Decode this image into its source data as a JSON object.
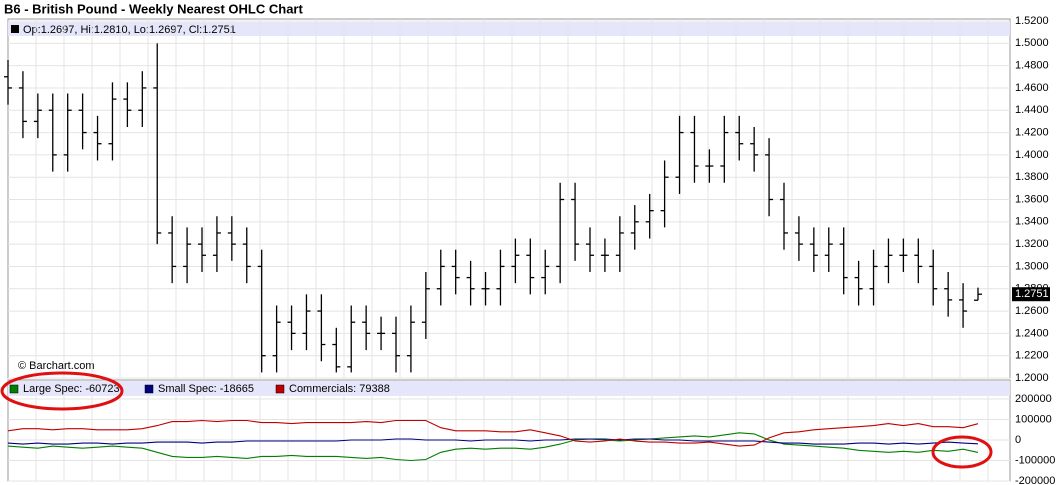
{
  "chart_data": [
    {
      "type": "ohlc",
      "title": "B6 - British Pound - Weekly Nearest OHLC Chart",
      "info": "Op:1.2697, Hi:1.2810, Lo:1.2697, Cl:1.2751",
      "source": "© Barchart.com",
      "color": "#000000",
      "open": [
        1.47,
        1.46,
        1.43,
        1.44,
        1.4,
        1.44,
        1.42,
        1.41,
        1.45,
        1.44,
        1.46,
        1.33,
        1.3,
        1.32,
        1.31,
        1.33,
        1.32,
        1.3,
        1.22,
        1.25,
        1.24,
        1.26,
        1.23,
        1.21,
        1.25,
        1.24,
        1.24,
        1.22,
        1.25,
        1.28,
        1.3,
        1.29,
        1.28,
        1.28,
        1.3,
        1.31,
        1.29,
        1.3,
        1.36,
        1.32,
        1.31,
        1.31,
        1.33,
        1.34,
        1.35,
        1.38,
        1.42,
        1.39,
        1.39,
        1.42,
        1.41,
        1.4,
        1.36,
        1.33,
        1.32,
        1.31,
        1.32,
        1.29,
        1.28,
        1.3,
        1.31,
        1.31,
        1.3,
        1.28,
        1.27,
        1.2697
      ],
      "high": [
        1.485,
        1.475,
        1.455,
        1.455,
        1.455,
        1.455,
        1.435,
        1.465,
        1.465,
        1.475,
        1.5,
        1.345,
        1.335,
        1.335,
        1.345,
        1.345,
        1.335,
        1.315,
        1.265,
        1.265,
        1.275,
        1.275,
        1.245,
        1.265,
        1.265,
        1.255,
        1.255,
        1.265,
        1.295,
        1.315,
        1.315,
        1.305,
        1.295,
        1.315,
        1.325,
        1.325,
        1.315,
        1.375,
        1.375,
        1.335,
        1.325,
        1.345,
        1.355,
        1.365,
        1.395,
        1.435,
        1.435,
        1.405,
        1.435,
        1.435,
        1.425,
        1.415,
        1.375,
        1.345,
        1.335,
        1.335,
        1.335,
        1.305,
        1.315,
        1.325,
        1.325,
        1.325,
        1.315,
        1.295,
        1.285,
        1.281
      ],
      "low": [
        1.445,
        1.415,
        1.415,
        1.385,
        1.385,
        1.405,
        1.395,
        1.395,
        1.425,
        1.425,
        1.32,
        1.285,
        1.285,
        1.295,
        1.295,
        1.305,
        1.285,
        1.205,
        1.205,
        1.225,
        1.225,
        1.215,
        1.205,
        1.205,
        1.225,
        1.225,
        1.205,
        1.205,
        1.235,
        1.265,
        1.275,
        1.265,
        1.265,
        1.265,
        1.285,
        1.275,
        1.275,
        1.285,
        1.305,
        1.295,
        1.295,
        1.295,
        1.315,
        1.325,
        1.335,
        1.365,
        1.375,
        1.375,
        1.375,
        1.395,
        1.385,
        1.345,
        1.315,
        1.305,
        1.295,
        1.295,
        1.275,
        1.265,
        1.265,
        1.285,
        1.295,
        1.285,
        1.265,
        1.255,
        1.245,
        1.2697
      ],
      "close": [
        1.46,
        1.43,
        1.44,
        1.4,
        1.44,
        1.42,
        1.41,
        1.45,
        1.44,
        1.46,
        1.33,
        1.3,
        1.32,
        1.31,
        1.33,
        1.32,
        1.3,
        1.22,
        1.25,
        1.24,
        1.26,
        1.23,
        1.21,
        1.25,
        1.24,
        1.24,
        1.22,
        1.25,
        1.28,
        1.3,
        1.29,
        1.28,
        1.28,
        1.3,
        1.31,
        1.29,
        1.3,
        1.36,
        1.32,
        1.31,
        1.31,
        1.33,
        1.34,
        1.35,
        1.38,
        1.42,
        1.39,
        1.39,
        1.42,
        1.41,
        1.4,
        1.36,
        1.33,
        1.32,
        1.31,
        1.32,
        1.29,
        1.28,
        1.3,
        1.31,
        1.31,
        1.3,
        1.28,
        1.27,
        1.26,
        1.2751
      ],
      "ylim": [
        1.2,
        1.52
      ],
      "yticks": [
        {
          "value": 1.2,
          "label": "1.2000"
        },
        {
          "value": 1.22,
          "label": "1.2200"
        },
        {
          "value": 1.24,
          "label": "1.2400"
        },
        {
          "value": 1.26,
          "label": "1.2600"
        },
        {
          "value": 1.28,
          "label": "1.2800"
        },
        {
          "value": 1.3,
          "label": "1.3000"
        },
        {
          "value": 1.32,
          "label": "1.3200"
        },
        {
          "value": 1.34,
          "label": "1.3400"
        },
        {
          "value": 1.36,
          "label": "1.3600"
        },
        {
          "value": 1.38,
          "label": "1.3800"
        },
        {
          "value": 1.4,
          "label": "1.4000"
        },
        {
          "value": 1.42,
          "label": "1.4200"
        },
        {
          "value": 1.44,
          "label": "1.4400"
        },
        {
          "value": 1.46,
          "label": "1.4600"
        },
        {
          "value": 1.48,
          "label": "1.4800"
        },
        {
          "value": 1.5,
          "label": "1.5000"
        },
        {
          "value": 1.52,
          "label": "1.5200"
        }
      ],
      "grid": true
    },
    {
      "type": "line",
      "series": [
        {
          "name": "Large Spec: -60723",
          "color": "#008000",
          "values": [
            -30000,
            -35000,
            -40000,
            -30000,
            -35000,
            -40000,
            -35000,
            -30000,
            -35000,
            -40000,
            -60000,
            -80000,
            -85000,
            -85000,
            -80000,
            -85000,
            -90000,
            -80000,
            -80000,
            -75000,
            -80000,
            -80000,
            -80000,
            -85000,
            -90000,
            -85000,
            -95000,
            -100000,
            -95000,
            -60000,
            -45000,
            -40000,
            -45000,
            -40000,
            -40000,
            -45000,
            -35000,
            -20000,
            0,
            5000,
            0,
            -5000,
            0,
            5000,
            10000,
            15000,
            20000,
            15000,
            25000,
            35000,
            30000,
            0,
            -20000,
            -25000,
            -30000,
            -35000,
            -40000,
            -50000,
            -55000,
            -60000,
            -55000,
            -60000,
            -50000,
            -55000,
            -45000,
            -60723
          ]
        },
        {
          "name": "Small Spec: -18665",
          "color": "#000080",
          "values": [
            -15000,
            -20000,
            -15000,
            -20000,
            -20000,
            -15000,
            -15000,
            -20000,
            -15000,
            -15000,
            -10000,
            -10000,
            -10000,
            -15000,
            -10000,
            -10000,
            -5000,
            -5000,
            -5000,
            -5000,
            -5000,
            -5000,
            -5000,
            0,
            0,
            0,
            5000,
            5000,
            0,
            0,
            0,
            -5000,
            0,
            0,
            0,
            -5000,
            0,
            0,
            5000,
            5000,
            5000,
            0,
            5000,
            5000,
            0,
            0,
            -5000,
            -5000,
            -5000,
            -5000,
            -5000,
            -10000,
            -15000,
            -15000,
            -20000,
            -20000,
            -20000,
            -15000,
            -15000,
            -20000,
            -15000,
            -20000,
            -15000,
            -10000,
            -15000,
            -18665
          ]
        },
        {
          "name": "Commercials: 79388",
          "color": "#c00000",
          "values": [
            45000,
            55000,
            55000,
            50000,
            55000,
            55000,
            50000,
            50000,
            50000,
            55000,
            70000,
            90000,
            90000,
            95000,
            90000,
            95000,
            95000,
            85000,
            85000,
            80000,
            85000,
            85000,
            85000,
            85000,
            90000,
            85000,
            95000,
            95000,
            95000,
            60000,
            45000,
            45000,
            45000,
            40000,
            40000,
            50000,
            35000,
            20000,
            -5000,
            -10000,
            -5000,
            5000,
            -5000,
            -10000,
            -10000,
            -15000,
            -15000,
            -10000,
            -20000,
            -30000,
            -25000,
            10000,
            35000,
            40000,
            50000,
            55000,
            60000,
            65000,
            70000,
            80000,
            70000,
            80000,
            65000,
            65000,
            60000,
            79388
          ]
        }
      ],
      "ylim": [
        -200000,
        200000
      ],
      "yticks": [
        -200000,
        -100000,
        0,
        100000,
        200000
      ],
      "grid": true
    }
  ]
}
